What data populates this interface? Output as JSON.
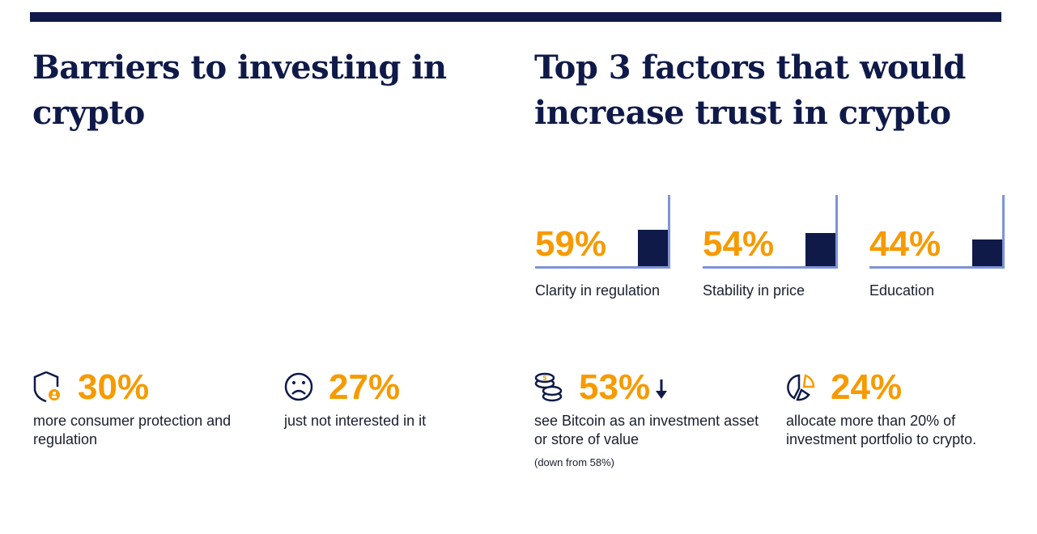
{
  "left": {
    "title_line1": "Barriers to investing in",
    "title_line2": "crypto",
    "stats": [
      {
        "value": "30%",
        "text": "more consumer protection and regulation",
        "icon": "shield-user-icon"
      },
      {
        "value": "27%",
        "text": "just not interested in it",
        "icon": "sad-face-icon"
      }
    ]
  },
  "right": {
    "title_line1": "Top 3 factors that would",
    "title_line2": "increase trust in crypto",
    "factors": [
      {
        "value": "59%",
        "label": "Clarity in regulation",
        "percent": 59
      },
      {
        "value": "54%",
        "label": "Stability in price",
        "percent": 54
      },
      {
        "value": "44%",
        "label": "Education",
        "percent": 44
      }
    ],
    "stats": [
      {
        "value": "53%",
        "text": "see Bitcoin as an investment asset or store of value",
        "note": "(down from 58%)",
        "icon": "coins-icon",
        "trend": "down-arrow-icon"
      },
      {
        "value": "24%",
        "text": "allocate more than 20% of investment portfolio to crypto.",
        "icon": "pie-chart-icon"
      }
    ]
  },
  "colors": {
    "navy": "#0f1a48",
    "orange": "#f79a00",
    "lavender": "#7f93d6"
  }
}
